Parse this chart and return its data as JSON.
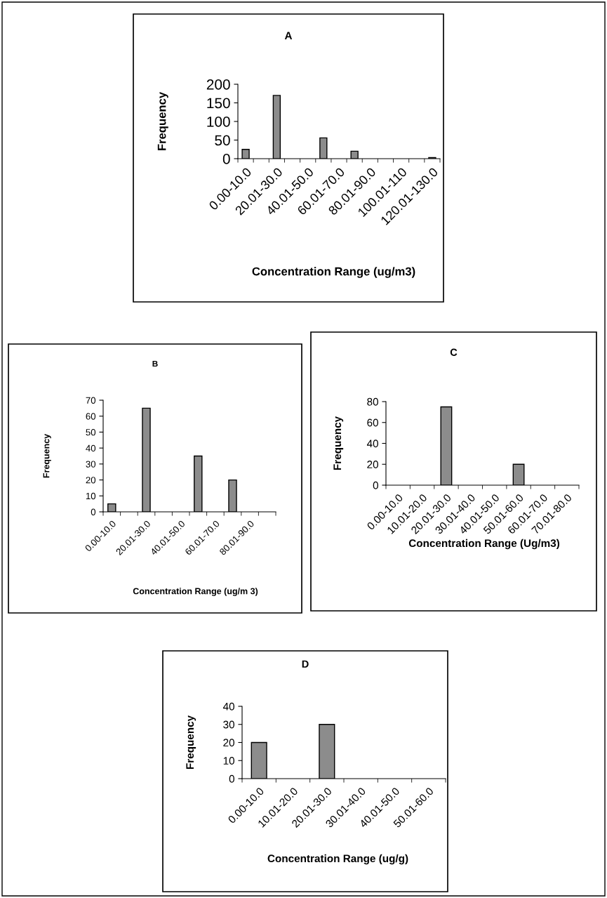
{
  "chart_data": [
    {
      "type": "bar",
      "title": "A",
      "xlabel": "Concentration Range (ug/m3)",
      "ylabel": "Frequency",
      "categories": [
        "0.00-10.0",
        null,
        "20.01-30.0",
        null,
        "40.01-50.0",
        null,
        "60.01-70.0",
        null,
        "80.01-90.0",
        null,
        "100.01-110",
        null,
        "120.01-130.0"
      ],
      "values": [
        25,
        null,
        170,
        null,
        null,
        56,
        null,
        20,
        null,
        null,
        null,
        null,
        3
      ],
      "color": "#8c8c8c",
      "ylim": [
        0,
        200
      ],
      "yticks": [
        0,
        50,
        100,
        150,
        200
      ],
      "grid": false,
      "legend": false
    },
    {
      "type": "bar",
      "title": "B",
      "xlabel": "Concentration Range (ug/m 3)",
      "ylabel": "Frequency",
      "categories": [
        "0.00-10.0",
        null,
        "20.01-30.0",
        null,
        "40.01-50.0",
        null,
        "60.01-70.0",
        null,
        "80.01-90.0",
        null
      ],
      "values": [
        5,
        null,
        65,
        null,
        null,
        35,
        null,
        20,
        null,
        null
      ],
      "color": "#8c8c8c",
      "ylim": [
        0,
        70
      ],
      "yticks": [
        0,
        10,
        20,
        30,
        40,
        50,
        60,
        70
      ],
      "grid": false,
      "legend": false
    },
    {
      "type": "bar",
      "title": "C",
      "xlabel": "Concentration Range (Ug/m3)",
      "ylabel": "Frequency",
      "categories": [
        "0.00-10.0",
        "10.01-20.0",
        "20.01-30.0",
        "30.01-40.0",
        "40.01-50.0",
        "50.01-60.0",
        "60.01-70.0",
        "70.01-80.0"
      ],
      "values": [
        null,
        null,
        75,
        null,
        null,
        20,
        null,
        null
      ],
      "color": "#8c8c8c",
      "ylim": [
        0,
        80
      ],
      "yticks": [
        0,
        20,
        40,
        60,
        80
      ],
      "grid": false,
      "legend": false
    },
    {
      "type": "bar",
      "title": "D",
      "xlabel": "Concentration Range (ug/g)",
      "ylabel": "Frequency",
      "categories": [
        "0.00-10.0",
        "10.01-20.0",
        "20.01-30.0",
        "30.01-40.0",
        "40.01-50.0",
        "50.01-60.0"
      ],
      "values": [
        20,
        null,
        30,
        null,
        null,
        null
      ],
      "color": "#8c8c8c",
      "ylim": [
        0,
        40
      ],
      "yticks": [
        0,
        10,
        20,
        30,
        40
      ],
      "grid": false,
      "legend": false
    }
  ]
}
